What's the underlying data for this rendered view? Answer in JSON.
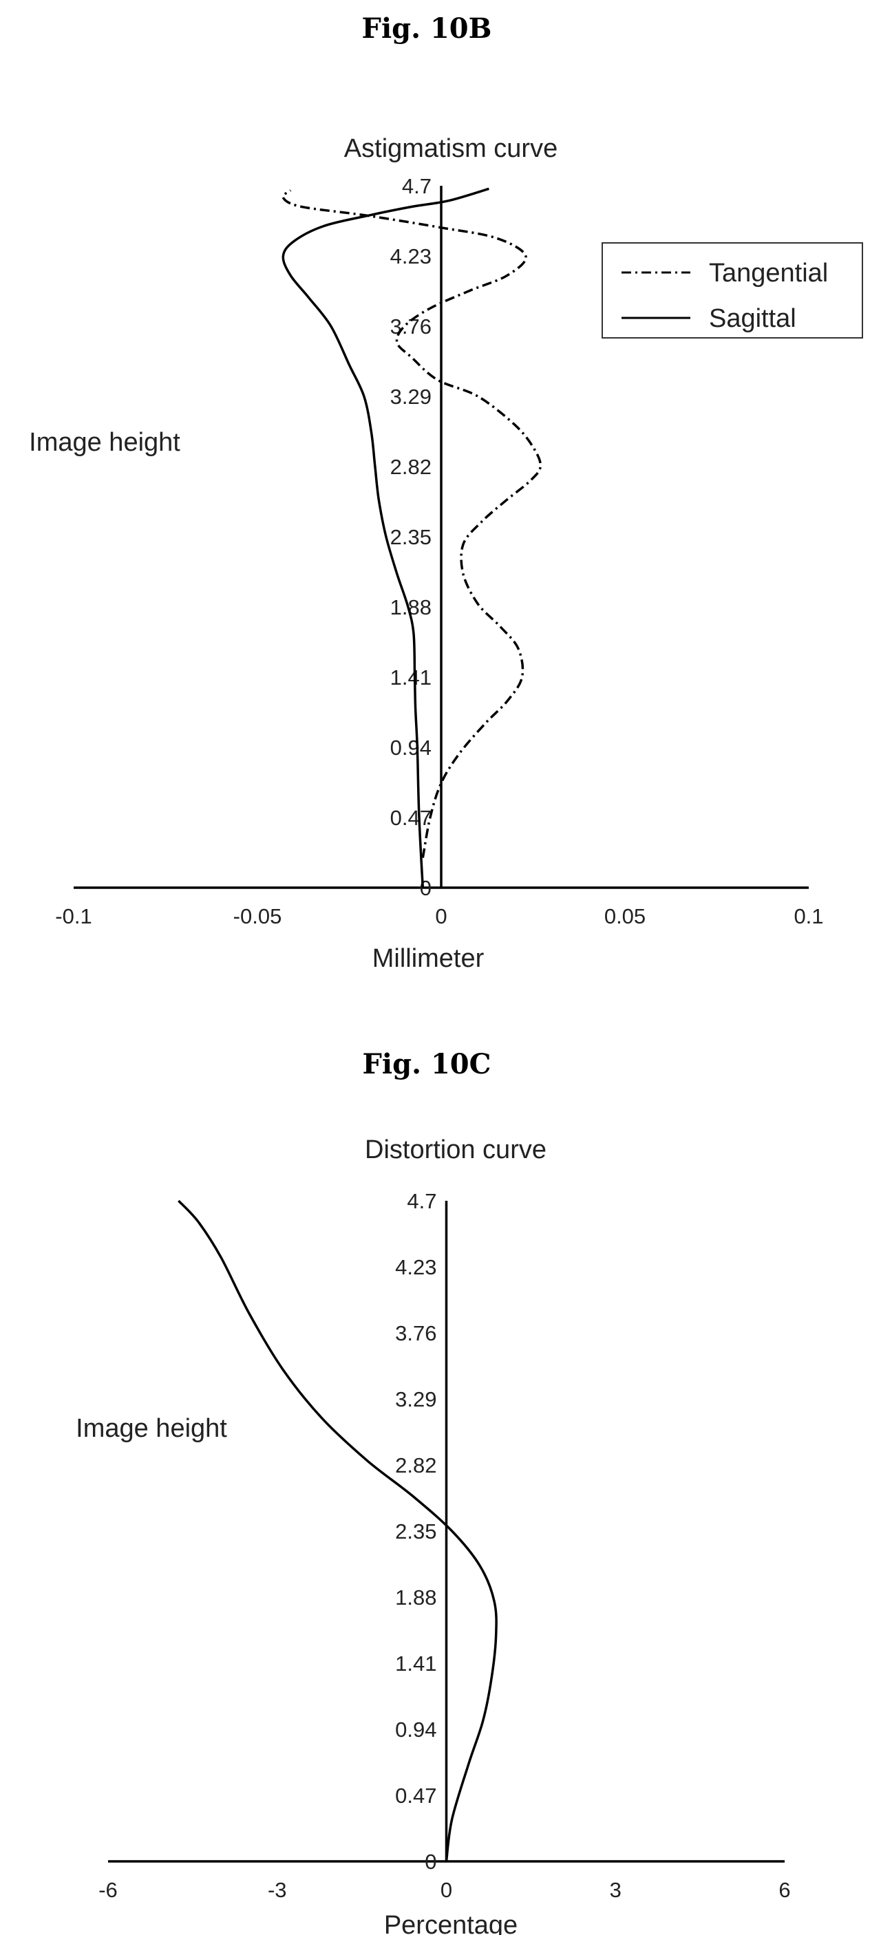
{
  "figures": {
    "b_label": "Fig. 10B",
    "c_label": "Fig. 10C"
  },
  "chart_data": [
    {
      "type": "line",
      "title": "Astigmatism curve",
      "xlabel": "Millimeter",
      "ylabel": "Image height",
      "xlim": [
        -0.1,
        0.1
      ],
      "ylim": [
        0,
        4.7
      ],
      "x_ticks": [
        "-0.1",
        "-0.05",
        "0",
        "0.05",
        "0.1"
      ],
      "y_ticks": [
        "0",
        "0.47",
        "0.94",
        "1.41",
        "1.88",
        "2.35",
        "2.82",
        "3.29",
        "3.76",
        "4.23",
        "4.7"
      ],
      "legend": "top-right",
      "series": [
        {
          "name": "Tangential",
          "style": "dash-dot",
          "x": [
            -0.005,
            -0.003,
            0.0,
            0.005,
            0.012,
            0.018,
            0.022,
            0.021,
            0.016,
            0.01,
            0.006,
            0.006,
            0.011,
            0.018,
            0.024,
            0.027,
            0.025,
            0.02,
            0.01,
            -0.001,
            -0.008,
            -0.012,
            -0.01,
            -0.003,
            0.008,
            0.018,
            0.023,
            0.015,
            0.0,
            -0.02,
            -0.038,
            -0.043,
            -0.041
          ],
          "y": [
            0.2,
            0.47,
            0.7,
            0.9,
            1.1,
            1.25,
            1.41,
            1.6,
            1.75,
            1.9,
            2.1,
            2.3,
            2.45,
            2.6,
            2.72,
            2.82,
            2.95,
            3.1,
            3.29,
            3.4,
            3.55,
            3.65,
            3.76,
            3.88,
            4.0,
            4.1,
            4.23,
            4.35,
            4.42,
            4.5,
            4.56,
            4.62,
            4.67
          ]
        },
        {
          "name": "Sagittal",
          "style": "solid",
          "x": [
            -0.005,
            -0.006,
            -0.0065,
            -0.007,
            -0.0072,
            -0.0075,
            -0.009,
            -0.012,
            -0.015,
            -0.017,
            -0.018,
            -0.019,
            -0.021,
            -0.025,
            -0.03,
            -0.036,
            -0.041,
            -0.043,
            -0.04,
            -0.032,
            -0.02,
            -0.008,
            0.002,
            0.013
          ],
          "y": [
            0.0,
            0.47,
            0.94,
            1.2,
            1.41,
            1.7,
            1.88,
            2.1,
            2.35,
            2.6,
            2.82,
            3.05,
            3.29,
            3.5,
            3.76,
            3.95,
            4.1,
            4.23,
            4.33,
            4.43,
            4.5,
            4.56,
            4.6,
            4.68
          ]
        }
      ]
    },
    {
      "type": "line",
      "title": "Distortion curve",
      "xlabel": "Percentage",
      "ylabel": "Image height",
      "xlim": [
        -6,
        6
      ],
      "ylim": [
        0,
        4.7
      ],
      "x_ticks": [
        "-6",
        "-3",
        "0",
        "3",
        "6"
      ],
      "y_ticks": [
        "0",
        "0.47",
        "0.94",
        "1.41",
        "1.88",
        "2.35",
        "2.82",
        "3.29",
        "3.76",
        "4.23",
        "4.7"
      ],
      "series": [
        {
          "x": [
            0.0,
            0.1,
            0.4,
            0.65,
            0.8,
            0.88,
            0.85,
            0.6,
            0.1,
            -0.6,
            -1.4,
            -2.2,
            -2.9,
            -3.5,
            -4.0,
            -4.4,
            -4.75
          ],
          "y": [
            0.0,
            0.3,
            0.7,
            1.0,
            1.3,
            1.6,
            1.85,
            2.1,
            2.35,
            2.6,
            2.85,
            3.15,
            3.5,
            3.9,
            4.3,
            4.55,
            4.7
          ]
        }
      ]
    }
  ]
}
